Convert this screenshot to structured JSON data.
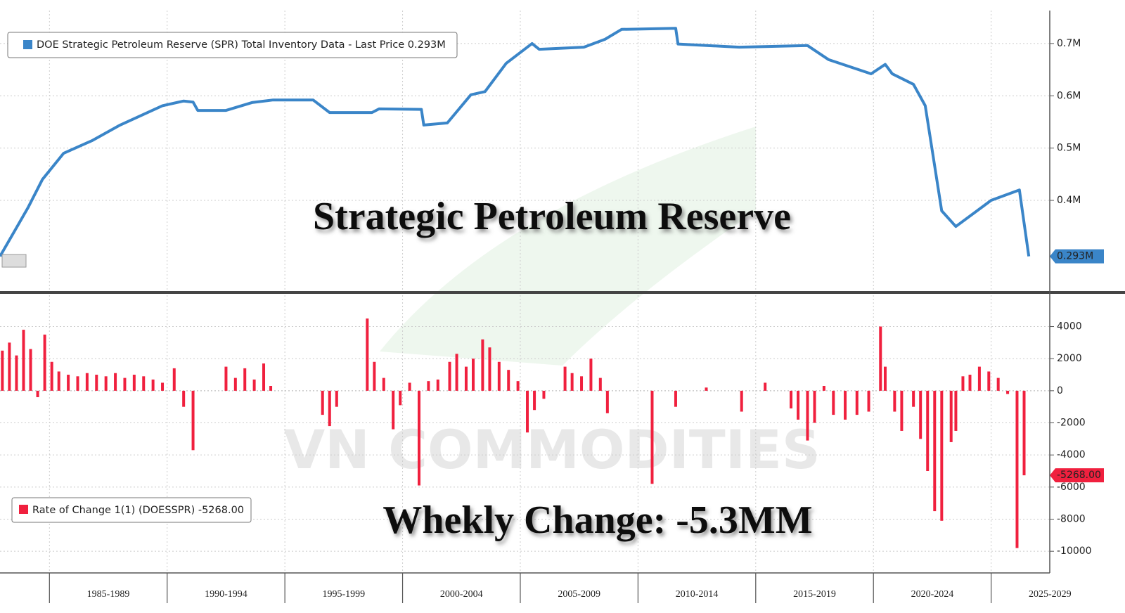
{
  "chart_data": [
    {
      "type": "line",
      "title": "Strategic Petroleum Reserve",
      "x": [
        1982.9,
        1983.5,
        1984.1,
        1984.7,
        1985.6,
        1986.8,
        1988.0,
        1989.8,
        1990.7,
        1991.1,
        1991.3,
        1992.5,
        1993.6,
        1994.5,
        1996.2,
        1996.9,
        1998.7,
        1999.0,
        2000.8,
        2000.9,
        2001.9,
        2002.9,
        2003.5,
        2004.4,
        2005.5,
        2005.8,
        2007.7,
        2008.6,
        2009.3,
        2011.6,
        2011.7,
        2014.3,
        2017.2,
        2018.1,
        2019.9,
        2020.5,
        2020.8,
        2021.7,
        2022.2,
        2022.9,
        2023.5,
        2025.0,
        2026.2,
        2026.6
      ],
      "series": [
        {
          "name": "DOE Strategic Petroleum Reserve (SPR) Total Inventory Data - Last Price 0.293M",
          "color": "#3a85c8",
          "values": [
            0.293,
            0.34,
            0.387,
            0.44,
            0.49,
            0.514,
            0.544,
            0.581,
            0.59,
            0.588,
            0.572,
            0.572,
            0.587,
            0.592,
            0.592,
            0.568,
            0.568,
            0.575,
            0.574,
            0.544,
            0.548,
            0.602,
            0.608,
            0.662,
            0.7,
            0.689,
            0.693,
            0.708,
            0.727,
            0.729,
            0.699,
            0.693,
            0.696,
            0.669,
            0.642,
            0.66,
            0.642,
            0.622,
            0.581,
            0.38,
            0.35,
            0.4,
            0.42,
            0.293
          ]
        }
      ],
      "xlim": [
        1982.9,
        2027.4
      ],
      "xticks": [
        1985,
        1990,
        1995,
        2000,
        2005,
        2010,
        2015,
        2020,
        2025
      ],
      "ylim": [
        0.228,
        0.763
      ],
      "yticks": [
        {
          "value": 0.4,
          "label": "0.4M"
        },
        {
          "value": 0.5,
          "label": "0.5M"
        },
        {
          "value": 0.6,
          "label": "0.6M"
        },
        {
          "value": 0.7,
          "label": "0.7M"
        }
      ],
      "grid": true,
      "last_value_label": "0.293M"
    },
    {
      "type": "bar",
      "title": "Whekly Change: -5.3MM",
      "x": [
        1983.0,
        1983.3,
        1983.6,
        1983.9,
        1984.2,
        1984.5,
        1984.8,
        1985.1,
        1985.4,
        1985.8,
        1986.2,
        1986.6,
        1987.0,
        1987.4,
        1987.8,
        1988.2,
        1988.6,
        1989.0,
        1989.4,
        1989.8,
        1990.3,
        1990.7,
        1991.1,
        1992.5,
        1992.9,
        1993.3,
        1993.7,
        1994.1,
        1994.4,
        1996.6,
        1996.9,
        1997.2,
        1998.5,
        1998.8,
        1999.2,
        1999.6,
        1999.9,
        2000.3,
        2000.7,
        2001.1,
        2001.5,
        2002.0,
        2002.3,
        2002.7,
        2003.0,
        2003.4,
        2003.7,
        2004.1,
        2004.5,
        2004.9,
        2005.3,
        2005.6,
        2006.0,
        2006.9,
        2007.2,
        2007.6,
        2008.0,
        2008.4,
        2008.7,
        2010.6,
        2011.6,
        2012.9,
        2014.4,
        2015.4,
        2016.5,
        2016.8,
        2017.2,
        2017.5,
        2017.9,
        2018.3,
        2018.8,
        2019.3,
        2019.8,
        2020.3,
        2020.5,
        2020.9,
        2021.2,
        2021.7,
        2022.0,
        2022.3,
        2022.6,
        2022.9,
        2023.3,
        2023.5,
        2023.8,
        2024.1,
        2024.5,
        2024.9,
        2025.3,
        2025.7,
        2026.1,
        2026.4
      ],
      "series": [
        {
          "name": "Rate of Change 1(1) (DOESSPR) -5268.00",
          "color": "#f0203e",
          "values": [
            2500,
            3000,
            2200,
            3800,
            2600,
            -400,
            3500,
            1800,
            1200,
            1000,
            900,
            1100,
            1000,
            900,
            1100,
            800,
            1000,
            900,
            700,
            500,
            1400,
            -1000,
            -3700,
            1500,
            800,
            1400,
            700,
            1700,
            300,
            -1500,
            -2200,
            -1000,
            4500,
            1800,
            800,
            -2400,
            -900,
            500,
            -5900,
            600,
            700,
            1800,
            2300,
            1500,
            2000,
            3200,
            2700,
            1800,
            1300,
            600,
            -2600,
            -1200,
            -500,
            1500,
            1100,
            900,
            2000,
            800,
            -1400,
            -5800,
            -1000,
            200,
            -1300,
            500,
            -1100,
            -1800,
            -3100,
            -2000,
            300,
            -1500,
            -1800,
            -1500,
            -1300,
            4000,
            1500,
            -1300,
            -2500,
            -1000,
            -3000,
            -5000,
            -7500,
            -8100,
            -3200,
            -2500,
            900,
            1000,
            1500,
            1200,
            800,
            -200,
            -9800,
            -5268
          ]
        }
      ],
      "xlim": [
        1982.9,
        2027.4
      ],
      "xticks": [
        {
          "value": 1985,
          "label": "1985-1989"
        },
        {
          "value": 1990,
          "label": "1990-1994"
        },
        {
          "value": 1995,
          "label": "1995-1999"
        },
        {
          "value": 2000,
          "label": "2000-2004"
        },
        {
          "value": 2005,
          "label": "2005-2009"
        },
        {
          "value": 2010,
          "label": "2010-2014"
        },
        {
          "value": 2015,
          "label": "2015-2019"
        },
        {
          "value": 2020,
          "label": "2020-2024"
        },
        {
          "value": 2025,
          "label": "2025-2029"
        }
      ],
      "ylim": [
        -11350,
        5950
      ],
      "yticks": [
        -10000,
        -8000,
        -6000,
        -4000,
        -2000,
        0,
        2000,
        4000
      ],
      "grid": true,
      "last_value_label": "-5268.00"
    }
  ],
  "watermark": "VN COMMODITIES"
}
